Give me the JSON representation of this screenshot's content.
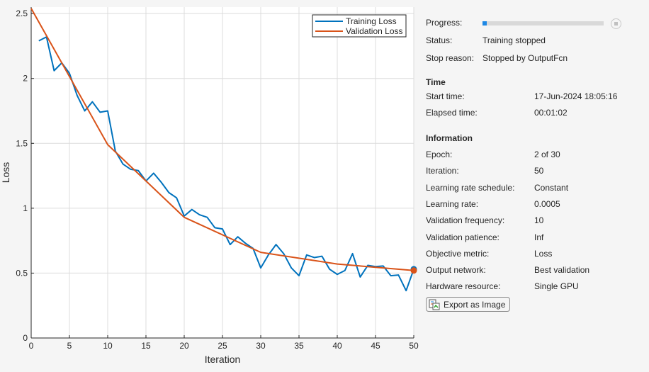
{
  "chart_data": {
    "type": "line",
    "xlabel": "Iteration",
    "ylabel": "Loss",
    "xlim": [
      0,
      50
    ],
    "ylim": [
      0,
      2.55
    ],
    "xticks": [
      0,
      5,
      10,
      15,
      20,
      25,
      30,
      35,
      40,
      45,
      50
    ],
    "yticks": [
      0,
      0.5,
      1,
      1.5,
      2,
      2.5
    ],
    "grid": true,
    "legend_position": "top-right",
    "series": [
      {
        "name": "Training Loss",
        "color": "#0072bd",
        "x": [
          1,
          2,
          3,
          4,
          5,
          6,
          7,
          8,
          9,
          10,
          11,
          12,
          13,
          14,
          15,
          16,
          17,
          18,
          19,
          20,
          21,
          22,
          23,
          24,
          25,
          26,
          27,
          28,
          29,
          30,
          31,
          32,
          33,
          34,
          35,
          36,
          37,
          38,
          39,
          40,
          41,
          42,
          43,
          44,
          45,
          46,
          47,
          48,
          49,
          50
        ],
        "y": [
          2.29,
          2.32,
          2.06,
          2.12,
          2.04,
          1.87,
          1.75,
          1.82,
          1.74,
          1.75,
          1.44,
          1.34,
          1.3,
          1.29,
          1.21,
          1.27,
          1.2,
          1.12,
          1.08,
          0.94,
          0.99,
          0.95,
          0.93,
          0.85,
          0.84,
          0.72,
          0.78,
          0.73,
          0.69,
          0.54,
          0.64,
          0.72,
          0.65,
          0.54,
          0.48,
          0.64,
          0.62,
          0.63,
          0.53,
          0.49,
          0.52,
          0.65,
          0.47,
          0.56,
          0.55,
          0.555,
          0.48,
          0.485,
          0.365,
          0.53
        ]
      },
      {
        "name": "Validation Loss",
        "color": "#d95319",
        "x": [
          0,
          10,
          20,
          30,
          40,
          50
        ],
        "y": [
          2.54,
          1.49,
          0.93,
          0.66,
          0.57,
          0.52
        ]
      }
    ]
  },
  "panel": {
    "progress_label": "Progress:",
    "progress_fraction": 0.033,
    "status_label": "Status:",
    "status_value": "Training stopped",
    "stop_reason_label": "Stop reason:",
    "stop_reason_value": "Stopped by OutputFcn",
    "time_heading": "Time",
    "start_time_label": "Start time:",
    "start_time_value": "17-Jun-2024 18:05:16",
    "elapsed_label": "Elapsed time:",
    "elapsed_value": "00:01:02",
    "info_heading": "Information",
    "info": [
      {
        "label": "Epoch:",
        "value": "2 of 30"
      },
      {
        "label": "Iteration:",
        "value": "50"
      },
      {
        "label": "Learning rate schedule:",
        "value": "Constant"
      },
      {
        "label": "Learning rate:",
        "value": "0.0005"
      },
      {
        "label": "Validation frequency:",
        "value": "10"
      },
      {
        "label": "Validation patience:",
        "value": "Inf"
      },
      {
        "label": "Objective metric:",
        "value": "Loss"
      },
      {
        "label": "Output network:",
        "value": "Best validation"
      },
      {
        "label": "Hardware resource:",
        "value": "Single GPU"
      }
    ],
    "export_label": "Export as Image"
  }
}
